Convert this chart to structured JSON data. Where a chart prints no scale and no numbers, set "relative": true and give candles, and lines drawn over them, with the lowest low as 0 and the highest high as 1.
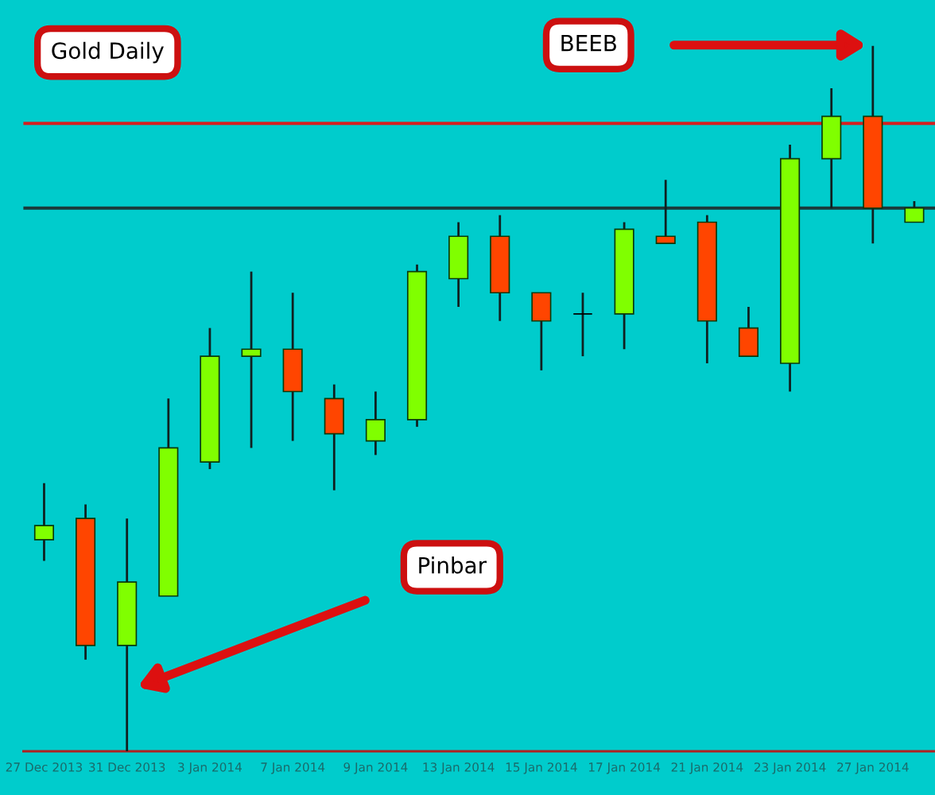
{
  "chart_data": {
    "type": "candlestick",
    "title": "Gold Daily",
    "relative": true,
    "tick_labels": "x",
    "grid": false,
    "categories": [
      "27 Dec 2013",
      null,
      "31 Dec 2013",
      null,
      "3 Jan 2014",
      null,
      "7 Jan 2014",
      null,
      "9 Jan 2014",
      null,
      "13 Jan 2014",
      null,
      "15 Jan 2014",
      null,
      "17 Jan 2014",
      null,
      "21 Jan 2014",
      null,
      "23 Jan 2014",
      null,
      "27 Jan 2014",
      null
    ],
    "ohlc": [
      [
        0.3,
        0.38,
        0.27,
        0.32
      ],
      [
        0.33,
        0.35,
        0.13,
        0.15
      ],
      [
        0.15,
        0.33,
        0.0,
        0.24
      ],
      [
        0.22,
        0.5,
        0.22,
        0.43
      ],
      [
        0.41,
        0.6,
        0.4,
        0.56
      ],
      [
        0.56,
        0.68,
        0.43,
        0.57
      ],
      [
        0.57,
        0.65,
        0.44,
        0.51
      ],
      [
        0.5,
        0.52,
        0.37,
        0.45
      ],
      [
        0.44,
        0.51,
        0.42,
        0.47
      ],
      [
        0.47,
        0.69,
        0.46,
        0.68
      ],
      [
        0.67,
        0.75,
        0.63,
        0.73
      ],
      [
        0.73,
        0.76,
        0.61,
        0.65
      ],
      [
        0.65,
        0.65,
        0.54,
        0.61
      ],
      [
        0.62,
        0.65,
        0.56,
        0.62
      ],
      [
        0.62,
        0.75,
        0.57,
        0.74
      ],
      [
        0.73,
        0.81,
        0.72,
        0.72
      ],
      [
        0.75,
        0.76,
        0.55,
        0.61
      ],
      [
        0.6,
        0.63,
        0.56,
        0.56
      ],
      [
        0.55,
        0.86,
        0.51,
        0.84
      ],
      [
        0.84,
        0.94,
        0.77,
        0.9
      ],
      [
        0.9,
        1.0,
        0.72,
        0.77
      ],
      [
        0.75,
        0.78,
        0.75,
        0.77
      ]
    ],
    "colors": [
      "#80ff00",
      "#ff4500",
      "#80ff00",
      "#80ff00",
      "#80ff00",
      "#80ff00",
      "#ff4500",
      "#ff4500",
      "#80ff00",
      "#80ff00",
      "#80ff00",
      "#ff4500",
      "#ff4500",
      "#000000",
      "#80ff00",
      "#ff4500",
      "#ff4500",
      "#ff4500",
      "#80ff00",
      "#80ff00",
      "#ff4500",
      "#80ff00"
    ],
    "ref_lines": [
      {
        "axis": "y",
        "value": 0.89,
        "color": "#d42020"
      },
      {
        "axis": "y",
        "value": 0.77,
        "color": "#1a3a3a"
      }
    ],
    "annotations": [
      "BEEB",
      "Pinbar"
    ]
  }
}
